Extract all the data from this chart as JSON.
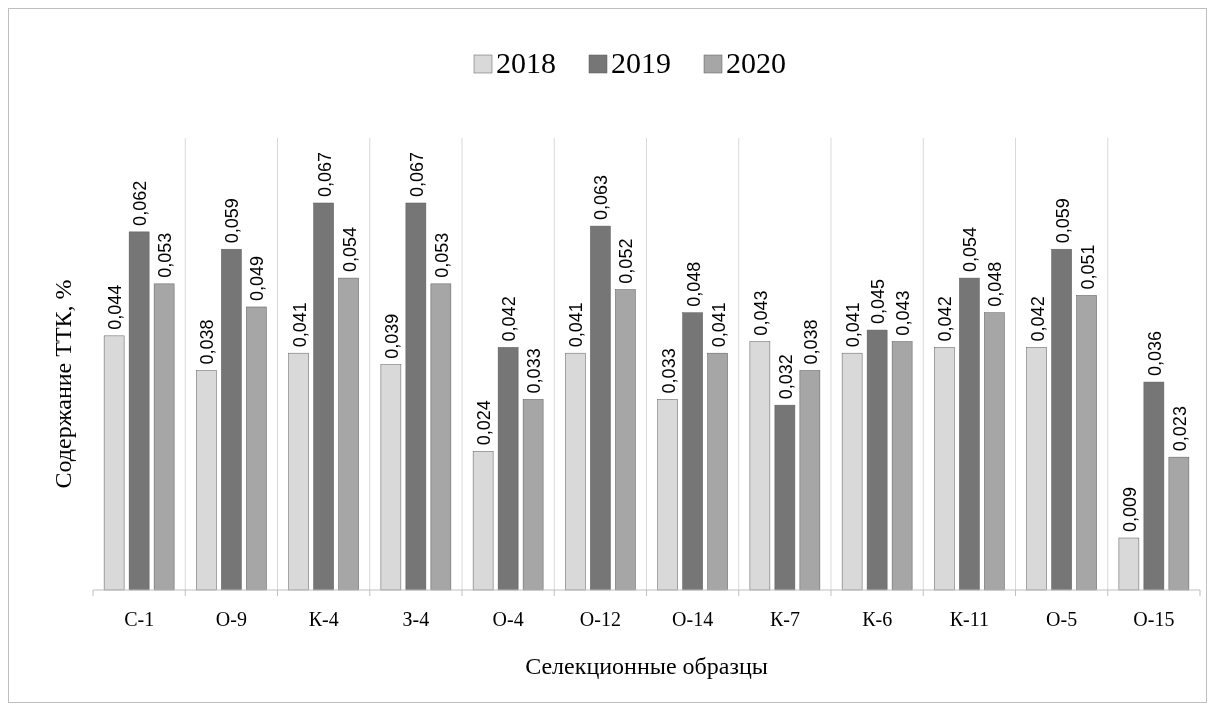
{
  "chart_data": {
    "type": "bar",
    "xlabel": "Селекционные образцы",
    "ylabel": "Содержание ТТК, %",
    "categories": [
      "С-1",
      "О-9",
      "К-4",
      "З-4",
      "О-4",
      "О-12",
      "О-14",
      "К-7",
      "К-6",
      "К-11",
      "О-5",
      "О-15"
    ],
    "series": [
      {
        "name": "2018",
        "color": "#d9d9d9",
        "values": [
          0.044,
          0.038,
          0.041,
          0.039,
          0.024,
          0.041,
          0.033,
          0.043,
          0.041,
          0.042,
          0.042,
          0.009
        ],
        "value_labels": [
          "0,044",
          "0,038",
          "0,041",
          "0,039",
          "0,024",
          "0,041",
          "0,033",
          "0,043",
          "0,041",
          "0,042",
          "0,042",
          "0,009"
        ]
      },
      {
        "name": "2019",
        "color": "#767676",
        "values": [
          0.062,
          0.059,
          0.067,
          0.067,
          0.042,
          0.063,
          0.048,
          0.032,
          0.045,
          0.054,
          0.059,
          0.036
        ],
        "value_labels": [
          "0,062",
          "0,059",
          "0,067",
          "0,067",
          "0,042",
          "0,063",
          "0,048",
          "0,032",
          "0,045",
          "0,054",
          "0,059",
          "0,036"
        ]
      },
      {
        "name": "2020",
        "color": "#a6a6a6",
        "values": [
          0.053,
          0.049,
          0.054,
          0.053,
          0.033,
          0.052,
          0.041,
          0.038,
          0.043,
          0.048,
          0.051,
          0.023
        ],
        "value_labels": [
          "0,053",
          "0,049",
          "0,054",
          "0,053",
          "0,033",
          "0,052",
          "0,041",
          "0,038",
          "0,043",
          "0,048",
          "0,051",
          "0,023"
        ]
      }
    ],
    "grid": "x",
    "legend": "top"
  }
}
